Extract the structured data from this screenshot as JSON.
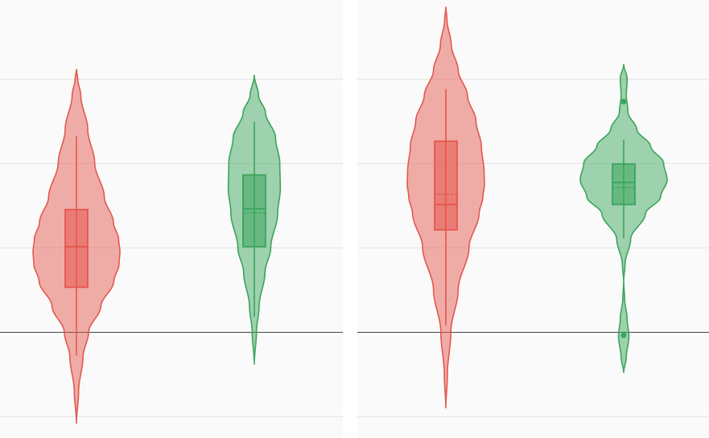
{
  "chart_data": {
    "type": "violin",
    "title": "",
    "xlabel": "",
    "ylabel": "",
    "ylim": [
      -1.0,
      4.0
    ],
    "baseline": 0,
    "grid": true,
    "legend": "none",
    "series_colors": [
      "#e4574e",
      "#3aa55c"
    ],
    "panels": [
      {
        "violins": [
          {
            "color": "#e4574e",
            "extent": [
              -1.08,
              3.11
            ],
            "density": [
              [
                -1.08,
                0.0
              ],
              [
                -0.7,
                0.05
              ],
              [
                -0.3,
                0.15
              ],
              [
                0.0,
                0.28
              ],
              [
                0.3,
                0.56
              ],
              [
                0.6,
                0.86
              ],
              [
                0.8,
                0.98
              ],
              [
                0.95,
                1.0
              ],
              [
                1.1,
                0.97
              ],
              [
                1.3,
                0.85
              ],
              [
                1.6,
                0.64
              ],
              [
                2.0,
                0.42
              ],
              [
                2.4,
                0.26
              ],
              [
                2.8,
                0.1
              ],
              [
                3.0,
                0.03
              ],
              [
                3.11,
                0.0
              ]
            ],
            "whisker_low": -0.28,
            "q1": 0.53,
            "median": 1.01,
            "mean": 1.01,
            "q3": 1.45,
            "whisker_high": 2.32,
            "outliers": []
          },
          {
            "color": "#3aa55c",
            "extent": [
              -0.38,
              3.04
            ],
            "density": [
              [
                -0.38,
                0.0
              ],
              [
                0.0,
                0.08
              ],
              [
                0.3,
                0.18
              ],
              [
                0.7,
                0.4
              ],
              [
                1.0,
                0.62
              ],
              [
                1.4,
                0.88
              ],
              [
                1.7,
                0.98
              ],
              [
                2.0,
                0.96
              ],
              [
                2.3,
                0.8
              ],
              [
                2.6,
                0.42
              ],
              [
                2.8,
                0.16
              ],
              [
                3.04,
                0.0
              ]
            ],
            "whisker_low": 0.18,
            "q1": 1.01,
            "median": 1.46,
            "mean": 1.41,
            "q3": 1.86,
            "whisker_high": 2.49,
            "outliers": []
          }
        ]
      },
      {
        "violins": [
          {
            "color": "#e4574e",
            "extent": [
              -0.9,
              3.85
            ],
            "density": [
              [
                -0.9,
                0.0
              ],
              [
                -0.5,
                0.04
              ],
              [
                0.0,
                0.13
              ],
              [
                0.5,
                0.32
              ],
              [
                1.0,
                0.6
              ],
              [
                1.4,
                0.86
              ],
              [
                1.6,
                0.96
              ],
              [
                1.75,
                1.0
              ],
              [
                1.9,
                0.99
              ],
              [
                2.2,
                0.92
              ],
              [
                2.5,
                0.78
              ],
              [
                2.8,
                0.56
              ],
              [
                3.1,
                0.32
              ],
              [
                3.4,
                0.14
              ],
              [
                3.7,
                0.03
              ],
              [
                3.85,
                0.0
              ]
            ],
            "whisker_low": 0.08,
            "q1": 1.21,
            "median": 1.51,
            "mean": 1.63,
            "q3": 2.26,
            "whisker_high": 2.88,
            "outliers": []
          },
          {
            "color": "#3aa55c",
            "extent": [
              -0.48,
              3.17
            ],
            "density": [
              [
                -0.48,
                0.0
              ],
              [
                -0.3,
                0.06
              ],
              [
                -0.05,
                0.12
              ],
              [
                0.15,
                0.08
              ],
              [
                0.4,
                0.02
              ],
              [
                0.6,
                0.0
              ],
              [
                0.8,
                0.03
              ],
              [
                1.1,
                0.16
              ],
              [
                1.4,
                0.5
              ],
              [
                1.6,
                0.85
              ],
              [
                1.8,
                1.0
              ],
              [
                2.0,
                0.92
              ],
              [
                2.2,
                0.62
              ],
              [
                2.4,
                0.3
              ],
              [
                2.6,
                0.1
              ],
              [
                2.8,
                0.06
              ],
              [
                3.0,
                0.08
              ],
              [
                3.17,
                0.0
              ]
            ],
            "whisker_low": 1.11,
            "q1": 1.51,
            "median": 1.77,
            "mean": 1.71,
            "q3": 1.99,
            "whisker_high": 2.28,
            "outliers": [
              2.73,
              -0.04
            ]
          }
        ]
      }
    ]
  }
}
